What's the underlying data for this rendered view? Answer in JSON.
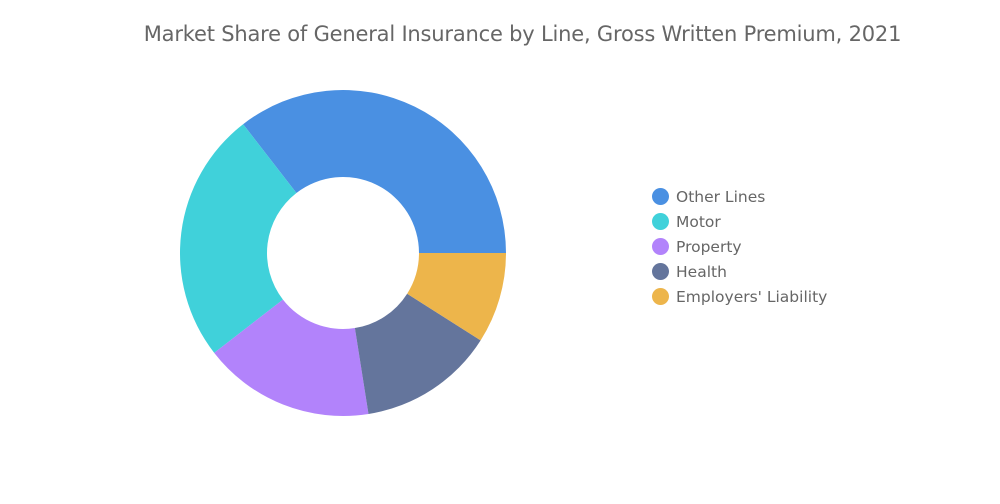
{
  "chart_data": {
    "type": "pie",
    "title": "Market Share of General Insurance by Line, Gross Written Premium, 2021",
    "donut": true,
    "categories": [
      "Other Lines",
      "Motor",
      "Property",
      "Health",
      "Employers' Liability"
    ],
    "values": [
      35.5,
      25.0,
      17.0,
      13.5,
      9.0
    ],
    "colors": [
      "#4A90E2",
      "#40D1DA",
      "#B283FB",
      "#64759C",
      "#EDB54B"
    ],
    "start_angle_deg": 90,
    "direction": "counterclockwise",
    "legend_position": "right"
  }
}
